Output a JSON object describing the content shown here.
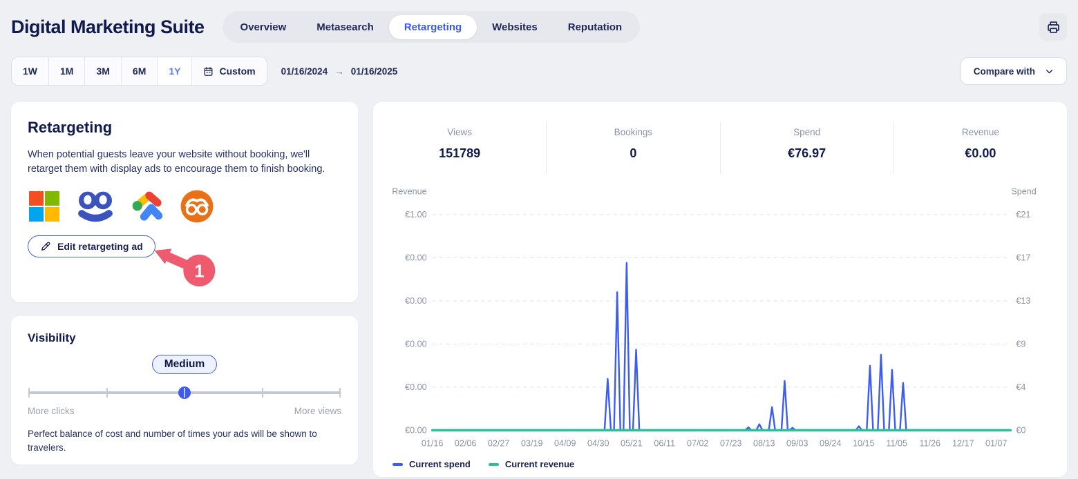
{
  "header": {
    "app_title": "Digital Marketing Suite",
    "tabs": [
      {
        "label": "Overview",
        "active": false
      },
      {
        "label": "Metasearch",
        "active": false
      },
      {
        "label": "Retargeting",
        "active": true
      },
      {
        "label": "Websites",
        "active": false
      },
      {
        "label": "Reputation",
        "active": false
      }
    ],
    "print_icon": "printer-icon"
  },
  "controls": {
    "ranges": [
      {
        "label": "1W",
        "active": false
      },
      {
        "label": "1M",
        "active": false
      },
      {
        "label": "3M",
        "active": false
      },
      {
        "label": "6M",
        "active": false
      },
      {
        "label": "1Y",
        "active": true
      },
      {
        "label": "Custom",
        "active": false,
        "icon": "calendar-icon"
      }
    ],
    "date_from": "01/16/2024",
    "date_arrow": "→",
    "date_to": "01/16/2025",
    "compare_label": "Compare with",
    "compare_icon": "chevron-down-icon"
  },
  "retargeting_card": {
    "title": "Retargeting",
    "description": "When potential guests leave your website without booking, we'll retarget them with display ads to encourage them to finish booking.",
    "platform_logos": [
      "microsoft-logo",
      "blue-owl-goggles-logo",
      "google-ads-logo",
      "orange-owl-face-logo"
    ],
    "edit_button_label": "Edit retargeting ad",
    "annotation_badge": "1"
  },
  "visibility_card": {
    "title": "Visibility",
    "level": "Medium",
    "slider_position_pct": 50,
    "slider_ticks_pct": [
      0,
      25,
      50,
      75,
      100
    ],
    "label_left": "More clicks",
    "label_right": "More views",
    "description": "Perfect balance of cost and number of times your ads will be shown to travelers."
  },
  "stats": [
    {
      "label": "Views",
      "value": "151789"
    },
    {
      "label": "Bookings",
      "value": "0"
    },
    {
      "label": "Spend",
      "value": "€76.97"
    },
    {
      "label": "Revenue",
      "value": "€0.00"
    }
  ],
  "chart_data": {
    "type": "line",
    "x": {
      "tick_labels": [
        "01/16",
        "02/06",
        "02/27",
        "03/19",
        "04/09",
        "04/30",
        "05/21",
        "06/11",
        "07/02",
        "07/23",
        "08/13",
        "09/03",
        "09/24",
        "10/15",
        "11/05",
        "11/26",
        "12/17",
        "01/07"
      ],
      "label_interval_days": 21,
      "range_days": 366
    },
    "y_left": {
      "title": "Revenue",
      "tick_labels_top_to_bottom": [
        "€1.00",
        "€0.00",
        "€0.00",
        "€0.00",
        "€0.00",
        "€0.00"
      ]
    },
    "y_right": {
      "title": "Spend",
      "tick_labels_top_to_bottom": [
        "€21",
        "€17",
        "€13",
        "€9",
        "€4",
        "€0"
      ],
      "max_value": 21.4
    },
    "grid": "dashed horizontal",
    "legend_position": "bottom-left",
    "series": [
      {
        "name": "Current spend",
        "axis": "right",
        "color": "#3D5CF5",
        "baseline_value": 0,
        "spikes": [
          {
            "date": "05/06",
            "day": 111,
            "value": 5.1
          },
          {
            "date": "05/12",
            "day": 117,
            "value": 13.7
          },
          {
            "date": "05/18",
            "day": 123,
            "value": 16.6
          },
          {
            "date": "05/24",
            "day": 129,
            "value": 8.0
          },
          {
            "date": "08/03",
            "day": 200,
            "value": 0.3
          },
          {
            "date": "08/10",
            "day": 207,
            "value": 0.6
          },
          {
            "date": "08/18",
            "day": 215,
            "value": 2.3
          },
          {
            "date": "08/26",
            "day": 223,
            "value": 4.9
          },
          {
            "date": "08/31",
            "day": 228,
            "value": 0.25
          },
          {
            "date": "10/12",
            "day": 270,
            "value": 0.4
          },
          {
            "date": "10/19",
            "day": 277,
            "value": 6.4
          },
          {
            "date": "10/26",
            "day": 284,
            "value": 7.5
          },
          {
            "date": "11/02",
            "day": 291,
            "value": 6.0
          },
          {
            "date": "11/09",
            "day": 298,
            "value": 4.7
          }
        ]
      },
      {
        "name": "Current revenue",
        "axis": "left",
        "color": "#2EBD96",
        "baseline_value": 0,
        "spikes": []
      }
    ]
  },
  "colors": {
    "accent_blue": "#3D5AF0",
    "spend_line": "#3D5CF5",
    "revenue_line": "#2EBD96",
    "annotation_red": "#EE5A6E",
    "navy_text": "#101A4D",
    "gray_text": "#8C93A9",
    "microsoft": [
      "#F25022",
      "#7FBA00",
      "#00A4EF",
      "#FFB900"
    ],
    "google_ads": [
      "#FBBC04",
      "#EA4335",
      "#34A853",
      "#4285F4"
    ],
    "owl_blue": "#3B53BC",
    "owl_orange": "#E87117"
  }
}
